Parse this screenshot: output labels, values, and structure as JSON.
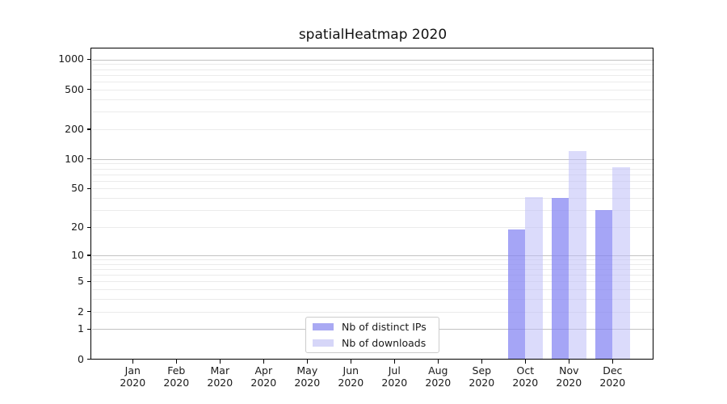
{
  "title": "spatialHeatmap 2020",
  "legend": {
    "items": [
      {
        "label": "Nb of distinct IPs",
        "color": "#a9a9f3"
      },
      {
        "label": "Nb of downloads",
        "color": "#d6d6f8"
      }
    ]
  },
  "chart_data": {
    "type": "bar",
    "title": "spatialHeatmap 2020",
    "year": "2020",
    "categories": [
      "Jan",
      "Feb",
      "Mar",
      "Apr",
      "May",
      "Jun",
      "Jul",
      "Aug",
      "Sep",
      "Oct",
      "Nov",
      "Dec"
    ],
    "series": [
      {
        "name": "Nb of distinct IPs",
        "color_fill": "rgba(130,130,243,0.72)",
        "color_hex": "#a5a5f6",
        "values": [
          0,
          0,
          0,
          0,
          0,
          0,
          0,
          0,
          0,
          19,
          40,
          30
        ]
      },
      {
        "name": "Nb of downloads",
        "color_fill": "rgba(190,190,247,0.55)",
        "color_hex": "#dcdcf9",
        "values": [
          0,
          0,
          0,
          0,
          0,
          0,
          0,
          0,
          0,
          41,
          120,
          82
        ]
      }
    ],
    "yscale": "log10(1+x)",
    "yticks": [
      0,
      1,
      2,
      5,
      10,
      20,
      50,
      100,
      200,
      500,
      1000
    ],
    "ytick_labels": [
      "0",
      "1",
      "2",
      "5",
      "10",
      "20",
      "50",
      "100",
      "200",
      "500",
      "1000"
    ],
    "ylim": [
      0,
      1300
    ],
    "grid": "major and minor horizontal gridlines",
    "legend_position": "lower center",
    "xlabel": "",
    "ylabel": ""
  }
}
